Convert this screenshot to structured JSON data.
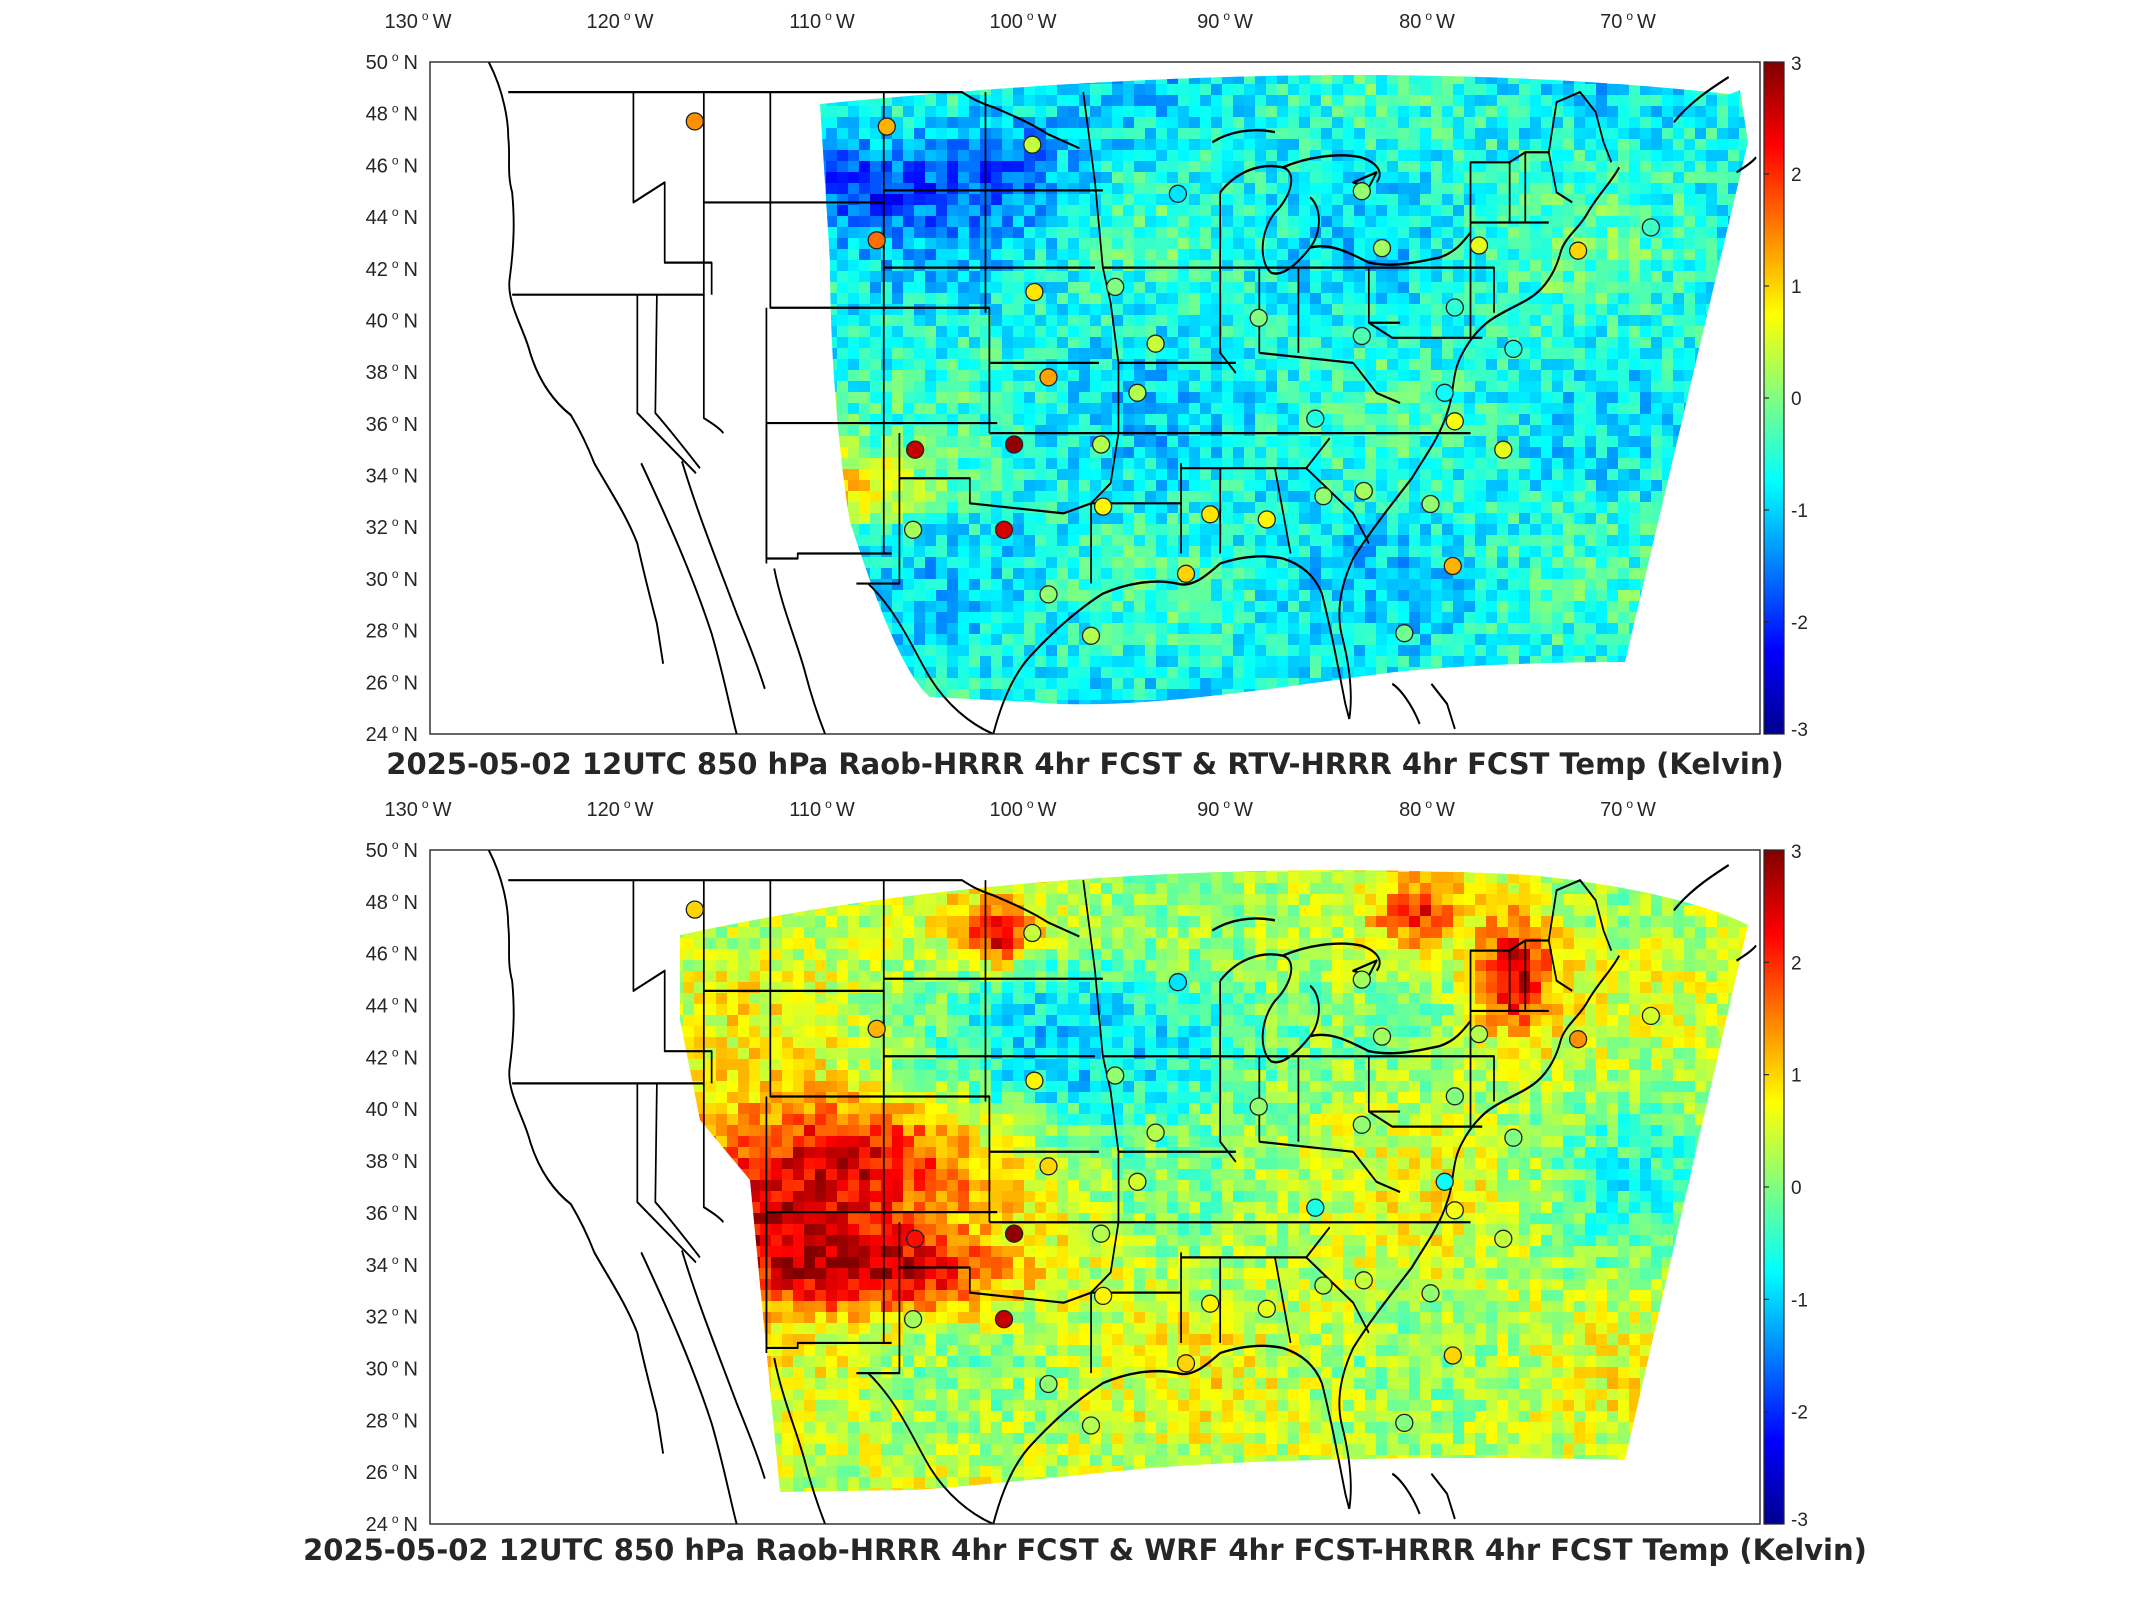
{
  "colors": {
    "colormap": [
      "#00008f",
      "#0000ff",
      "#0080ff",
      "#00ffff",
      "#80ff80",
      "#ffff00",
      "#ff8000",
      "#ff0000",
      "#800000"
    ],
    "frame": "#262626",
    "borders": "#000000",
    "missing": "#ffffff"
  },
  "maps": [
    {
      "id": "top",
      "title": "2025-05-02 12UTC 850 hPa Raob-HRRR 4hr FCST & RTV-HRRR 4hr FCST Temp (Kelvin)",
      "lon_labels": [
        {
          "deg": "130",
          "hem": "W"
        },
        {
          "deg": "120",
          "hem": "W"
        },
        {
          "deg": "110",
          "hem": "W"
        },
        {
          "deg": "100",
          "hem": "W"
        },
        {
          "deg": "90",
          "hem": "W"
        },
        {
          "deg": "80",
          "hem": "W"
        },
        {
          "deg": "70",
          "hem": "W"
        }
      ],
      "lat_labels": [
        {
          "deg": "50",
          "hem": "N"
        },
        {
          "deg": "48",
          "hem": "N"
        },
        {
          "deg": "46",
          "hem": "N"
        },
        {
          "deg": "44",
          "hem": "N"
        },
        {
          "deg": "42",
          "hem": "N"
        },
        {
          "deg": "40",
          "hem": "N"
        },
        {
          "deg": "38",
          "hem": "N"
        },
        {
          "deg": "36",
          "hem": "N"
        },
        {
          "deg": "34",
          "hem": "N"
        },
        {
          "deg": "32",
          "hem": "N"
        },
        {
          "deg": "30",
          "hem": "N"
        },
        {
          "deg": "28",
          "hem": "N"
        },
        {
          "deg": "26",
          "hem": "N"
        },
        {
          "deg": "24",
          "hem": "N"
        }
      ],
      "colorbar": {
        "ticks": [
          "3",
          "2",
          "1",
          "0",
          "-1",
          "-2",
          "-3"
        ],
        "range": [
          -3,
          3
        ]
      },
      "field_bias": -0.7,
      "stations": [
        {
          "lon": -117.5,
          "lat": 47.7,
          "value": 1.4
        },
        {
          "lon": -108.5,
          "lat": 43.1,
          "value": 1.6
        },
        {
          "lon": -108.0,
          "lat": 47.5,
          "value": 1.2
        },
        {
          "lon": -100.8,
          "lat": 46.8,
          "value": 0.4
        },
        {
          "lon": -93.6,
          "lat": 44.9,
          "value": -0.9
        },
        {
          "lon": -100.7,
          "lat": 41.1,
          "value": 0.9
        },
        {
          "lon": -96.7,
          "lat": 41.3,
          "value": 0.0
        },
        {
          "lon": -94.7,
          "lat": 39.1,
          "value": 0.4
        },
        {
          "lon": -100.0,
          "lat": 37.8,
          "value": 1.3
        },
        {
          "lon": -95.6,
          "lat": 37.2,
          "value": 0.3
        },
        {
          "lon": -106.6,
          "lat": 35.0,
          "value": 2.6
        },
        {
          "lon": -101.7,
          "lat": 35.2,
          "value": 2.9
        },
        {
          "lon": -97.4,
          "lat": 35.2,
          "value": 0.3
        },
        {
          "lon": -102.2,
          "lat": 31.9,
          "value": 2.5
        },
        {
          "lon": -106.7,
          "lat": 31.9,
          "value": 0.2
        },
        {
          "lon": -97.3,
          "lat": 32.8,
          "value": 0.8
        },
        {
          "lon": -92.0,
          "lat": 32.5,
          "value": 0.9
        },
        {
          "lon": -93.2,
          "lat": 30.2,
          "value": 1.0
        },
        {
          "lon": -97.9,
          "lat": 27.8,
          "value": 0.3
        },
        {
          "lon": -100.0,
          "lat": 29.4,
          "value": 0.1
        },
        {
          "lon": -89.2,
          "lat": 32.3,
          "value": 0.8
        },
        {
          "lon": -86.4,
          "lat": 33.2,
          "value": 0.1
        },
        {
          "lon": -84.4,
          "lat": 33.4,
          "value": 0.2
        },
        {
          "lon": -86.8,
          "lat": 36.2,
          "value": -0.6
        },
        {
          "lon": -84.5,
          "lat": 39.4,
          "value": -0.3
        },
        {
          "lon": -89.6,
          "lat": 40.1,
          "value": 0.0
        },
        {
          "lon": -83.5,
          "lat": 42.8,
          "value": 0.2
        },
        {
          "lon": -84.5,
          "lat": 45.0,
          "value": 0.1
        },
        {
          "lon": -79.9,
          "lat": 40.5,
          "value": -0.5
        },
        {
          "lon": -80.4,
          "lat": 37.2,
          "value": -0.7
        },
        {
          "lon": -79.9,
          "lat": 36.1,
          "value": 0.7
        },
        {
          "lon": -81.1,
          "lat": 32.9,
          "value": 0.1
        },
        {
          "lon": -80.0,
          "lat": 30.5,
          "value": 1.2
        },
        {
          "lon": -82.4,
          "lat": 27.9,
          "value": -0.1
        },
        {
          "lon": -77.0,
          "lat": 38.9,
          "value": -0.6
        },
        {
          "lon": -73.8,
          "lat": 42.7,
          "value": 1.0
        },
        {
          "lon": -77.5,
          "lat": 35.0,
          "value": 0.6
        },
        {
          "lon": -78.7,
          "lat": 42.9,
          "value": 0.6
        },
        {
          "lon": -70.2,
          "lat": 43.6,
          "value": -0.4
        }
      ]
    },
    {
      "id": "bottom",
      "title": "2025-05-02 12UTC 850 hPa Raob-HRRR 4hr FCST & WRF 4hr FCST-HRRR 4hr FCST Temp (Kelvin)",
      "lon_labels": [
        {
          "deg": "130",
          "hem": "W"
        },
        {
          "deg": "120",
          "hem": "W"
        },
        {
          "deg": "110",
          "hem": "W"
        },
        {
          "deg": "100",
          "hem": "W"
        },
        {
          "deg": "90",
          "hem": "W"
        },
        {
          "deg": "80",
          "hem": "W"
        },
        {
          "deg": "70",
          "hem": "W"
        }
      ],
      "lat_labels": [
        {
          "deg": "50",
          "hem": "N"
        },
        {
          "deg": "48",
          "hem": "N"
        },
        {
          "deg": "46",
          "hem": "N"
        },
        {
          "deg": "44",
          "hem": "N"
        },
        {
          "deg": "42",
          "hem": "N"
        },
        {
          "deg": "40",
          "hem": "N"
        },
        {
          "deg": "38",
          "hem": "N"
        },
        {
          "deg": "36",
          "hem": "N"
        },
        {
          "deg": "34",
          "hem": "N"
        },
        {
          "deg": "32",
          "hem": "N"
        },
        {
          "deg": "30",
          "hem": "N"
        },
        {
          "deg": "28",
          "hem": "N"
        },
        {
          "deg": "26",
          "hem": "N"
        },
        {
          "deg": "24",
          "hem": "N"
        }
      ],
      "colorbar": {
        "ticks": [
          "3",
          "2",
          "1",
          "0",
          "-1",
          "-2",
          "-3"
        ],
        "range": [
          -3,
          3
        ]
      },
      "field_bias": 0.4,
      "stations": [
        {
          "lon": -117.5,
          "lat": 47.7,
          "value": 1.0
        },
        {
          "lon": -108.5,
          "lat": 43.1,
          "value": 1.2
        },
        {
          "lon": -100.8,
          "lat": 46.8,
          "value": 0.4
        },
        {
          "lon": -93.6,
          "lat": 44.9,
          "value": -0.9
        },
        {
          "lon": -100.7,
          "lat": 41.1,
          "value": 0.8
        },
        {
          "lon": -96.7,
          "lat": 41.3,
          "value": 0.1
        },
        {
          "lon": -94.7,
          "lat": 39.1,
          "value": 0.3
        },
        {
          "lon": -100.0,
          "lat": 37.8,
          "value": 1.0
        },
        {
          "lon": -95.6,
          "lat": 37.2,
          "value": 0.5
        },
        {
          "lon": -106.6,
          "lat": 35.0,
          "value": 2.2
        },
        {
          "lon": -101.7,
          "lat": 35.2,
          "value": 2.9
        },
        {
          "lon": -97.4,
          "lat": 35.2,
          "value": 0.3
        },
        {
          "lon": -102.2,
          "lat": 31.9,
          "value": 2.6
        },
        {
          "lon": -106.7,
          "lat": 31.9,
          "value": 0.2
        },
        {
          "lon": -97.3,
          "lat": 32.8,
          "value": 0.8
        },
        {
          "lon": -92.0,
          "lat": 32.5,
          "value": 0.8
        },
        {
          "lon": -93.2,
          "lat": 30.2,
          "value": 1.0
        },
        {
          "lon": -97.9,
          "lat": 27.8,
          "value": 0.3
        },
        {
          "lon": -100.0,
          "lat": 29.4,
          "value": 0.1
        },
        {
          "lon": -89.2,
          "lat": 32.3,
          "value": 0.6
        },
        {
          "lon": -86.4,
          "lat": 33.2,
          "value": 0.3
        },
        {
          "lon": -84.4,
          "lat": 33.4,
          "value": 0.4
        },
        {
          "lon": -86.8,
          "lat": 36.2,
          "value": -0.6
        },
        {
          "lon": -84.5,
          "lat": 39.4,
          "value": 0.1
        },
        {
          "lon": -89.6,
          "lat": 40.1,
          "value": 0.1
        },
        {
          "lon": -83.5,
          "lat": 42.8,
          "value": 0.2
        },
        {
          "lon": -84.5,
          "lat": 45.0,
          "value": 0.2
        },
        {
          "lon": -79.9,
          "lat": 40.5,
          "value": 0.0
        },
        {
          "lon": -80.4,
          "lat": 37.2,
          "value": -0.7
        },
        {
          "lon": -79.9,
          "lat": 36.1,
          "value": 0.7
        },
        {
          "lon": -81.1,
          "lat": 32.9,
          "value": 0.1
        },
        {
          "lon": -80.0,
          "lat": 30.5,
          "value": 1.0
        },
        {
          "lon": -82.4,
          "lat": 27.9,
          "value": 0.0
        },
        {
          "lon": -77.0,
          "lat": 38.9,
          "value": 0.0
        },
        {
          "lon": -73.8,
          "lat": 42.7,
          "value": 1.4
        },
        {
          "lon": -77.5,
          "lat": 35.0,
          "value": 0.4
        },
        {
          "lon": -78.7,
          "lat": 42.9,
          "value": 0.3
        },
        {
          "lon": -70.2,
          "lat": 43.6,
          "value": 0.5
        }
      ]
    }
  ]
}
